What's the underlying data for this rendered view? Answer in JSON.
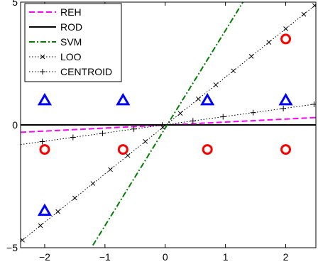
{
  "chart_data": {
    "type": "scatter",
    "xlim": [
      -2.4,
      2.5
    ],
    "ylim": [
      -5,
      5
    ],
    "x_ticks": [
      -2,
      -1,
      0,
      1,
      2
    ],
    "y_ticks": [
      -5,
      0,
      5
    ],
    "x_tick_labels": [
      "−2",
      "−1",
      "0",
      "1",
      "2"
    ],
    "y_tick_labels": [
      "−5",
      "0",
      "5"
    ],
    "grid": false,
    "legend_position": "top-left",
    "lines": [
      {
        "name": "REH",
        "color": "#ff00ff",
        "style": "dashed",
        "marker": "none",
        "points": [
          [
            -2.4,
            -0.3
          ],
          [
            2.5,
            0.3
          ]
        ]
      },
      {
        "name": "ROD",
        "color": "#000000",
        "style": "solid",
        "marker": "none",
        "points": [
          [
            -2.4,
            0
          ],
          [
            2.5,
            0
          ]
        ]
      },
      {
        "name": "SVM",
        "color": "#007f00",
        "style": "dashdot",
        "marker": "none",
        "points": [
          [
            -1.2,
            -4.9
          ],
          [
            1.29,
            5
          ]
        ]
      },
      {
        "name": "LOO",
        "color": "#000000",
        "style": "dotted",
        "marker": "x",
        "points": [
          [
            -2.4,
            -4.75
          ],
          [
            2.5,
            4.9
          ]
        ],
        "marker_x": [
          -2.37,
          -2.07,
          -1.78,
          -1.5,
          -1.2,
          -0.91,
          -0.62,
          -0.33,
          -0.04,
          0.25,
          0.55,
          0.84,
          1.13,
          1.43,
          1.72,
          2.0,
          2.3,
          2.48
        ]
      },
      {
        "name": "CENTROID",
        "color": "#000000",
        "style": "dotted",
        "marker": "plus",
        "points": [
          [
            -2.4,
            -0.8
          ],
          [
            2.5,
            0.85
          ]
        ],
        "marker_x": [
          -2.04,
          -1.53,
          -1.04,
          -0.52,
          -0.05,
          0.46,
          0.96,
          1.46,
          1.96,
          2.47
        ]
      }
    ],
    "class_triangle": {
      "marker": "triangle",
      "color": "#0000ff",
      "x": [
        -2,
        -0.7,
        0.7,
        2,
        -2
      ],
      "y": [
        1,
        1,
        1,
        1,
        -3.5
      ]
    },
    "class_circle": {
      "marker": "circle",
      "color": "#ff0000",
      "x": [
        -2,
        -0.7,
        0.7,
        2,
        2
      ],
      "y": [
        -1,
        -1,
        -1,
        -1,
        3.5
      ]
    }
  }
}
